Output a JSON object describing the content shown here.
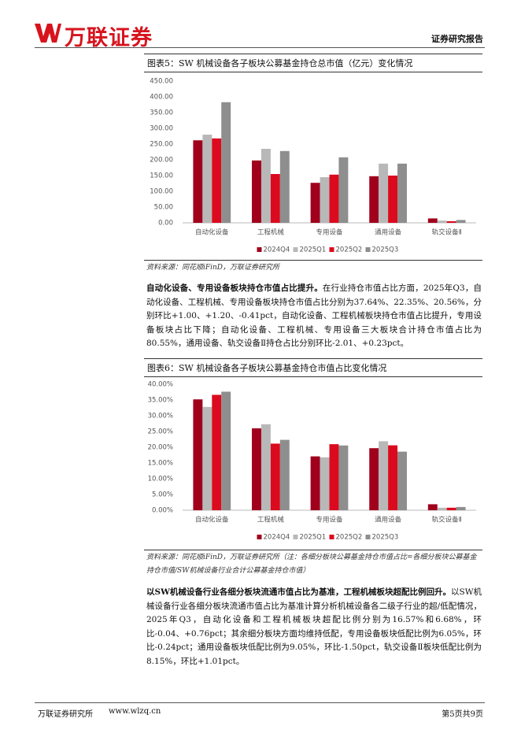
{
  "header": {
    "logo_text": "万联证券",
    "report_type": "证券研究报告"
  },
  "chart_data": [
    {
      "type": "bar",
      "title": "图表5：SW 机械设备各子板块公募基金持仓总市值（亿元）变化情况",
      "categories": [
        "自动化设备",
        "工程机械",
        "专用设备",
        "通用设备",
        "轨交设备Ⅱ"
      ],
      "series": [
        {
          "name": "2024Q4",
          "color": "#a0001c",
          "values": [
            262,
            198,
            127,
            148,
            14
          ]
        },
        {
          "name": "2025Q1",
          "color": "#b8b8b8",
          "values": [
            280,
            235,
            145,
            188,
            7
          ]
        },
        {
          "name": "2025Q2",
          "color": "#dc0a1e",
          "values": [
            268,
            155,
            153,
            150,
            5
          ]
        },
        {
          "name": "2025Q3",
          "color": "#8e8e8e",
          "values": [
            383,
            228,
            208,
            188,
            9
          ]
        }
      ],
      "ylim": [
        0,
        450
      ],
      "yticks": [
        {
          "value": 0,
          "label": "0.00"
        },
        {
          "value": 50,
          "label": "50.00"
        },
        {
          "value": 100,
          "label": "100.00"
        },
        {
          "value": 150,
          "label": "150.00"
        },
        {
          "value": 200,
          "label": "200.00"
        },
        {
          "value": 250,
          "label": "250.00"
        },
        {
          "value": 300,
          "label": "300.00"
        },
        {
          "value": 350,
          "label": "350.00"
        },
        {
          "value": 400,
          "label": "400.00"
        },
        {
          "value": 450,
          "label": "450.00"
        }
      ],
      "grid": false,
      "legend": "bottom",
      "source": "资料来源：同花顺iFinD，万联证券研究所"
    },
    {
      "type": "bar",
      "title": "图表6：SW 机械设备各子板块公募基金持仓市值占比变化情况",
      "categories": [
        "自动化设备",
        "工程机械",
        "专用设备",
        "通用设备",
        "轨交设备Ⅱ"
      ],
      "series": [
        {
          "name": "2024Q4",
          "color": "#a0001c",
          "values": [
            35.2,
            26.0,
            17.1,
            19.7,
            1.9
          ]
        },
        {
          "name": "2025Q1",
          "color": "#b8b8b8",
          "values": [
            32.8,
            27.3,
            16.8,
            21.9,
            0.8
          ]
        },
        {
          "name": "2025Q2",
          "color": "#dc0a1e",
          "values": [
            36.64,
            21.15,
            20.97,
            20.61,
            0.8
          ]
        },
        {
          "name": "2025Q3",
          "color": "#8e8e8e",
          "values": [
            37.64,
            22.35,
            20.56,
            18.6,
            1.03
          ]
        }
      ],
      "ylim": [
        0,
        40
      ],
      "yticks": [
        {
          "value": 0,
          "label": "0.00%"
        },
        {
          "value": 5,
          "label": "5.00%"
        },
        {
          "value": 10,
          "label": "10.00%"
        },
        {
          "value": 15,
          "label": "15.00%"
        },
        {
          "value": 20,
          "label": "20.00%"
        },
        {
          "value": 25,
          "label": "25.00%"
        },
        {
          "value": 30,
          "label": "30.00%"
        },
        {
          "value": 35,
          "label": "35.00%"
        },
        {
          "value": 40,
          "label": "40.00%"
        }
      ],
      "grid": false,
      "legend": "bottom",
      "source": "资料来源：同花顺iFinD，万联证券研究所（注：各细分板块公募基金持仓市值占比=各细分板块公募基金持仓市值/SW机械设备行业合计公募基金持仓市值）"
    }
  ],
  "paragraphs": [
    {
      "lead": "自动化设备、专用设备板块持仓市值占比提升。",
      "text": "在行业持仓市值占比方面，2025年Q3，自动化设备、工程机械、专用设备板块持仓市值占比分别为37.64%、22.35%、20.56%，分别环比+1.00、+1.20、-0.41pct，自动化设备、工程机械板块持仓市值占比提升，专用设备板块占比下降；自动化设备、工程机械、专用设备三大板块合计持仓市值占比为80.55%，通用设备、轨交设备Ⅱ持仓占比分别环比-2.01、+0.23pct。"
    },
    {
      "lead": "以SW机械设备行业各细分板块流通市值占比为基准，工程机械板块超配比例回升。",
      "text": "以SW机械设备行业各细分板块流通市值占比为基准计算分析机械设备各二级子行业的超/低配情况，2025年Q3，自动化设备和工程机械板块超配比例分别为16.57%和6.68%，环比-0.04、+0.76pct；其余细分板块方面均维持低配，专用设备板块低配比例为6.05%，环比-0.24pct；通用设备板块低配比例为9.05%，环比-1.50pct，轨交设备Ⅱ板块低配比例为8.15%，环比+1.01pct。"
    }
  ],
  "footer": {
    "org": "万联证券研究所",
    "url": "www.wlzq.cn",
    "page": "第5页共9页"
  }
}
